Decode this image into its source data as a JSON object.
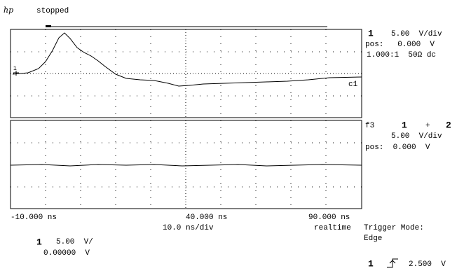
{
  "header": {
    "logo": "hp",
    "status": "stopped"
  },
  "channel1": {
    "label": "1",
    "scale": "5.00  V/div",
    "pos": "pos:   0.000  V",
    "probe": "1.000:1  50Ω dc"
  },
  "trace_label": "c1",
  "function": {
    "label": "f3",
    "expr_a": "1",
    "op": "+",
    "expr_b": "2",
    "scale": "5.00  V/div",
    "pos": "pos:  0.000  V"
  },
  "time": {
    "left": "-10.000 ns",
    "center": "40.000 ns",
    "right": "90.000 ns",
    "per_div": "10.0 ns/div",
    "mode": "realtime"
  },
  "trigger_mode": {
    "label": "Trigger Mode:",
    "value": "Edge"
  },
  "bottom_channel": {
    "label": "1",
    "scale": "5.00  V/",
    "offset": "0.00000  V"
  },
  "trigger": {
    "channel": "1",
    "level": "2.500  V"
  }
}
